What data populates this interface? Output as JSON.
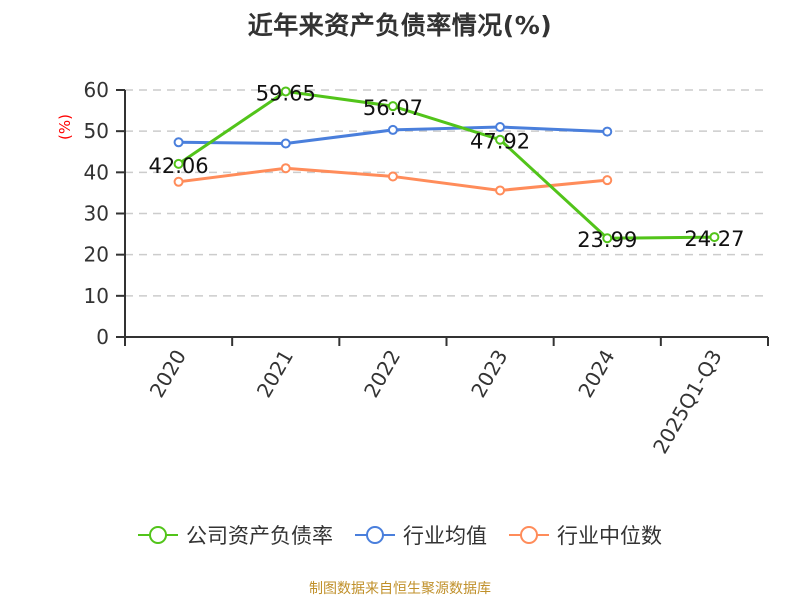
{
  "title": "近年来资产负债率情况(%)",
  "source": "制图数据来自恒生聚源数据库",
  "colors": {
    "company": "#52c41a",
    "industry_avg": "#4a7fdc",
    "industry_median": "#ff8c5a",
    "axis": "#333333",
    "grid": "#cccccc",
    "ylabel": "#ff0000",
    "source": "#c0902a"
  },
  "legend": [
    {
      "label": "公司资产负债率",
      "color": "#52c41a"
    },
    {
      "label": "行业均值",
      "color": "#4a7fdc"
    },
    {
      "label": "行业中位数",
      "color": "#ff8c5a"
    }
  ],
  "chart_data": {
    "type": "line",
    "title": "近年来资产负债率情况(%)",
    "xlabel": "",
    "ylabel": "(%)",
    "ylim": [
      0,
      60
    ],
    "yticks": [
      0,
      10,
      20,
      30,
      40,
      50,
      60
    ],
    "grid": true,
    "legend_position": "bottom",
    "categories": [
      "2020",
      "2021",
      "2022",
      "2023",
      "2024",
      "2025Q1-Q3"
    ],
    "series": [
      {
        "name": "公司资产负债率",
        "values": [
          42.06,
          59.65,
          56.07,
          47.92,
          23.99,
          24.27
        ],
        "labels": [
          "42.06",
          "59.65",
          "56.07",
          "47.92",
          "23.99",
          "24.27"
        ]
      },
      {
        "name": "行业均值",
        "values": [
          47.3,
          47.0,
          50.3,
          51.0,
          49.9,
          null
        ]
      },
      {
        "name": "行业中位数",
        "values": [
          37.7,
          41.0,
          39.0,
          35.6,
          38.1,
          null
        ]
      }
    ]
  }
}
